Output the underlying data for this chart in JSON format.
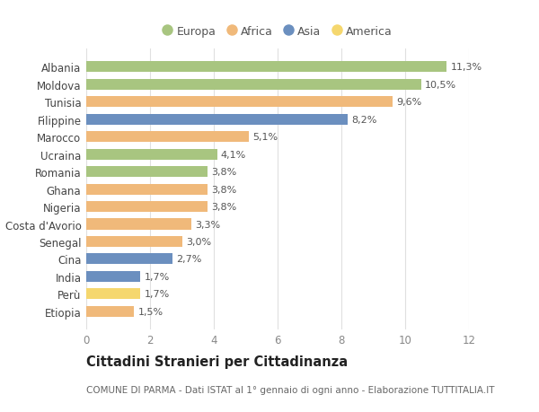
{
  "categories": [
    "Albania",
    "Moldova",
    "Tunisia",
    "Filippine",
    "Marocco",
    "Ucraina",
    "Romania",
    "Ghana",
    "Nigeria",
    "Costa d'Avorio",
    "Senegal",
    "Cina",
    "India",
    "Perù",
    "Etiopia"
  ],
  "values": [
    11.3,
    10.5,
    9.6,
    8.2,
    5.1,
    4.1,
    3.8,
    3.8,
    3.8,
    3.3,
    3.0,
    2.7,
    1.7,
    1.7,
    1.5
  ],
  "labels": [
    "11,3%",
    "10,5%",
    "9,6%",
    "8,2%",
    "5,1%",
    "4,1%",
    "3,8%",
    "3,8%",
    "3,8%",
    "3,3%",
    "3,0%",
    "2,7%",
    "1,7%",
    "1,7%",
    "1,5%"
  ],
  "continents": [
    "Europa",
    "Europa",
    "Africa",
    "Asia",
    "Africa",
    "Europa",
    "Europa",
    "Africa",
    "Africa",
    "Africa",
    "Africa",
    "Asia",
    "Asia",
    "America",
    "Africa"
  ],
  "continent_colors": {
    "Europa": "#a8c580",
    "Africa": "#f0b97a",
    "Asia": "#6b8fbf",
    "America": "#f5d76e"
  },
  "legend_order": [
    "Europa",
    "Africa",
    "Asia",
    "America"
  ],
  "title": "Cittadini Stranieri per Cittadinanza",
  "subtitle": "COMUNE DI PARMA - Dati ISTAT al 1° gennaio di ogni anno - Elaborazione TUTTITALIA.IT",
  "xlim": [
    0,
    12
  ],
  "xticks": [
    0,
    2,
    4,
    6,
    8,
    10,
    12
  ],
  "bg_color": "#ffffff",
  "grid_color": "#e0e0e0",
  "bar_height": 0.62,
  "value_label_fontsize": 8.0,
  "category_fontsize": 8.5,
  "title_fontsize": 10.5,
  "subtitle_fontsize": 7.5
}
